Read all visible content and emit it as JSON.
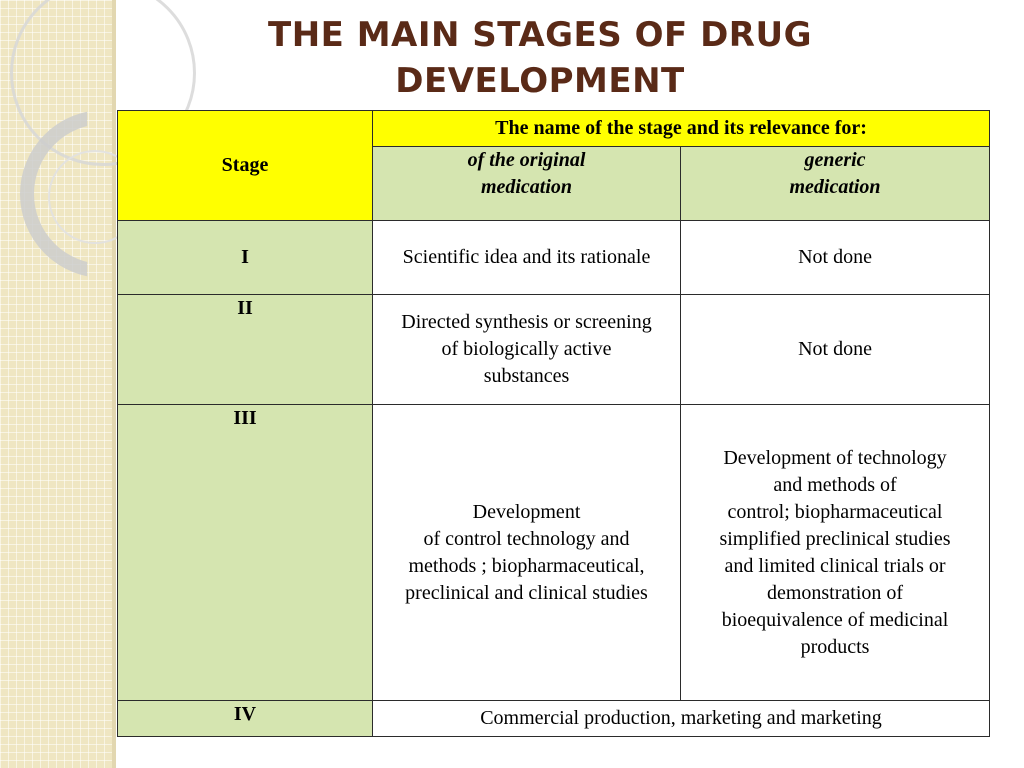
{
  "slide": {
    "title_line1": "THE MAIN STAGES OF DRUG",
    "title_line2": "DEVELOPMENT"
  },
  "table": {
    "stage_header": "Stage",
    "relevance_header": "The name of the stage and its relevance for:",
    "original_header_line1": "of the original",
    "original_header_line2": "medication",
    "generic_header_line1": "generic",
    "generic_header_line2": "medication",
    "rows": [
      {
        "stage": "I",
        "original": [
          "Scientific idea and its rationale"
        ],
        "generic": [
          "Not done"
        ]
      },
      {
        "stage": "II",
        "original": [
          "Directed synthesis or screening",
          "of biologically active",
          "substances"
        ],
        "generic": [
          "Not done"
        ]
      },
      {
        "stage": "III",
        "original": [
          "Development",
          "of control technology and",
          "methods ; biopharmaceutical,",
          "preclinical and clinical studies"
        ],
        "generic": [
          "Development of technology",
          "and methods of",
          "control; biopharmaceutical",
          "simplified preclinical studies",
          "and limited clinical trials or",
          "demonstration of",
          "bioequivalence of medicinal",
          "products"
        ]
      },
      {
        "stage": "IV",
        "combined": "Commercial production, marketing and marketing"
      }
    ]
  },
  "colors": {
    "title": "#5a2a17",
    "header_yellow": "#ffff00",
    "header_green": "#d5e5b0",
    "stripe": "#efe6c2"
  }
}
